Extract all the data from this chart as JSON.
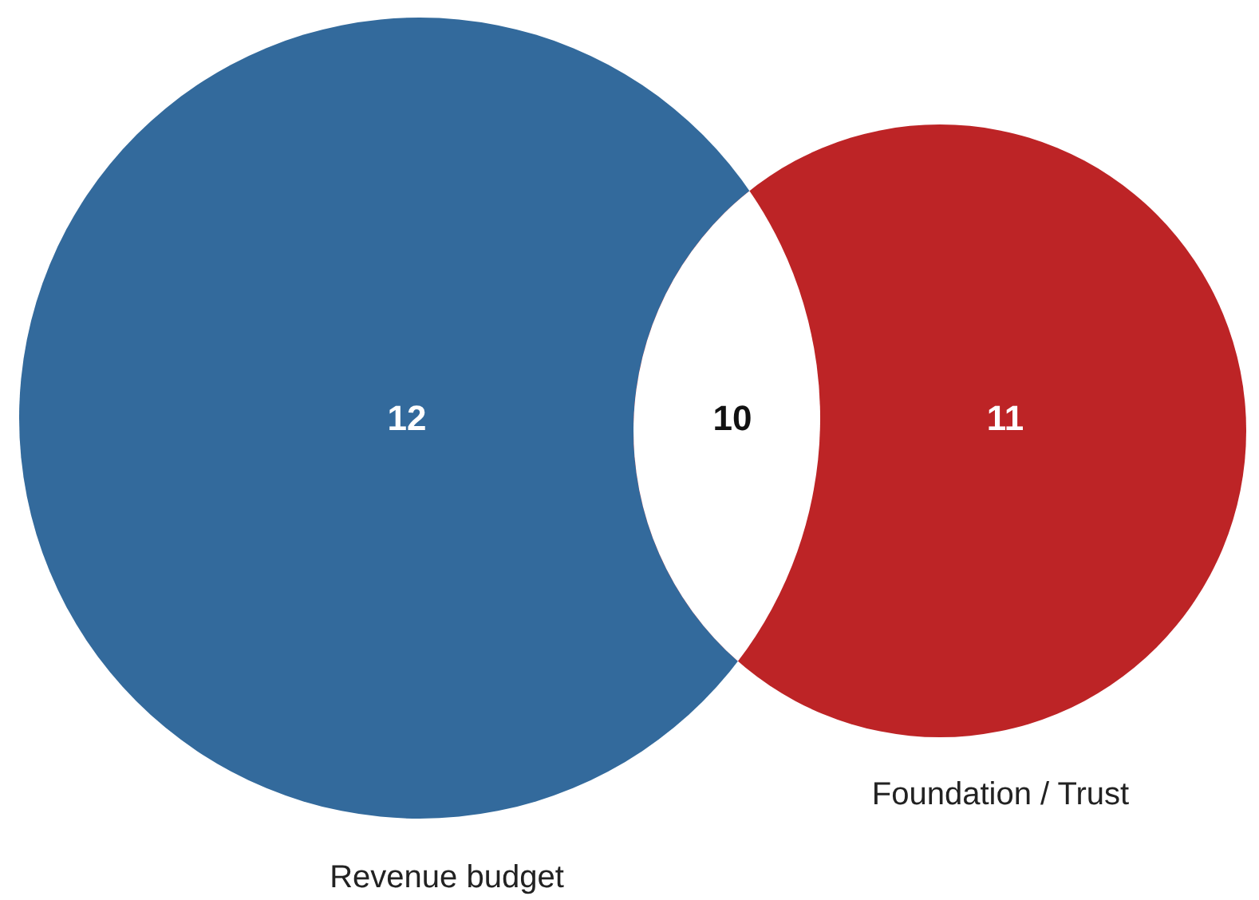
{
  "chart_data": {
    "type": "other",
    "categories": [
      "Revenue budget",
      "Foundation / Trust"
    ],
    "values": [
      12,
      11
    ],
    "colors": [
      "#336a9c",
      "#bd2426"
    ],
    "data_labels": true,
    "annotations": [
      "10"
    ]
  }
}
